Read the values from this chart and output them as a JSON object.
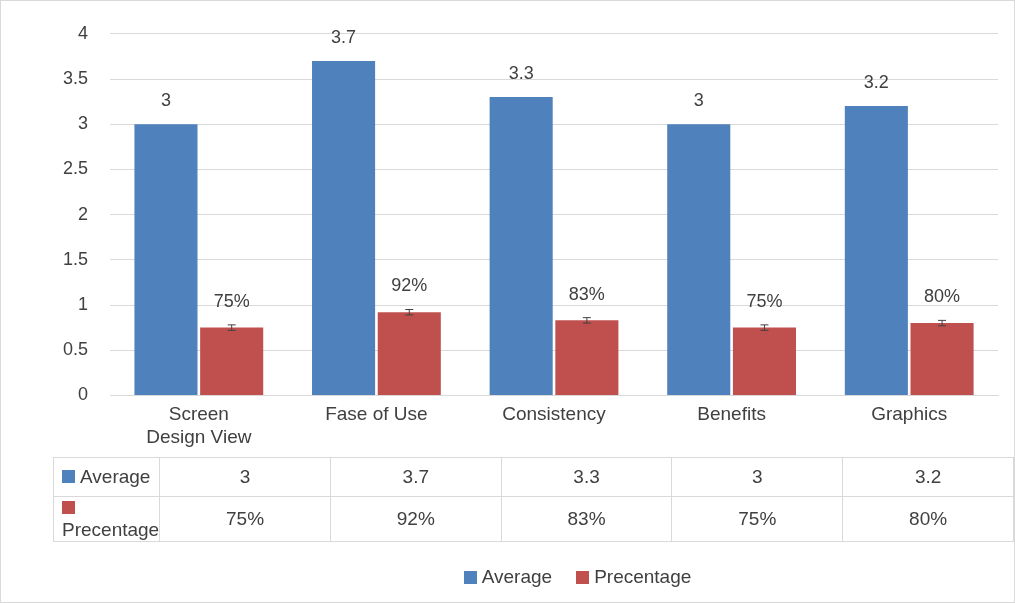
{
  "chart_data": {
    "type": "bar",
    "categories": [
      "Screen Design View",
      "Fase of Use",
      "Consistency",
      "Benefits",
      "Graphics"
    ],
    "series": [
      {
        "name": "Average",
        "color": "#4f81bd",
        "values": [
          3,
          3.7,
          3.3,
          3,
          3.2
        ],
        "value_labels": [
          "3",
          "3.7",
          "3.3",
          "3",
          "3.2"
        ]
      },
      {
        "name": "Precentage",
        "color": "#c0504d",
        "values": [
          0.75,
          0.92,
          0.83,
          0.75,
          0.8
        ],
        "value_labels": [
          "75%",
          "92%",
          "83%",
          "75%",
          "80%"
        ],
        "errors": [
          0.03,
          0.03,
          0.03,
          0.03,
          0.03
        ]
      }
    ],
    "ylim": [
      0,
      4
    ],
    "yticks": [
      0,
      0.5,
      1,
      1.5,
      2,
      2.5,
      3,
      3.5,
      4
    ],
    "grid": "y",
    "legend": "bottom"
  }
}
